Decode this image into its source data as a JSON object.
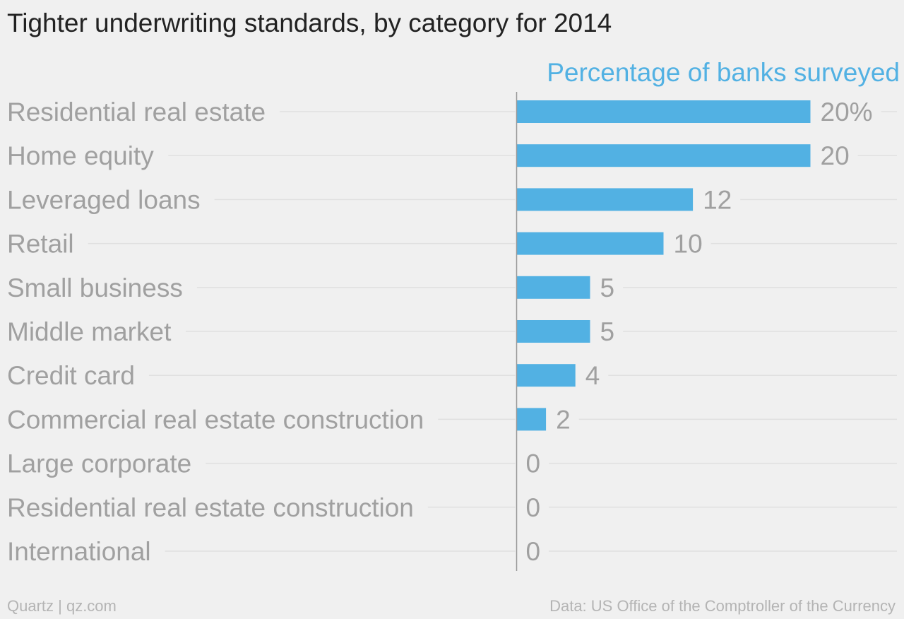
{
  "chart_data": {
    "type": "bar",
    "orientation": "horizontal",
    "title": "Tighter underwriting standards, by category for 2014",
    "series_label": "Percentage of banks surveyed",
    "categories": [
      "Residential real estate",
      "Home equity",
      "Leveraged loans",
      "Retail",
      "Small business",
      "Middle market",
      "Credit card",
      "Commercial real estate construction",
      "Large corporate",
      "Residential real estate construction",
      "International"
    ],
    "values": [
      20,
      20,
      12,
      10,
      5,
      5,
      4,
      2,
      0,
      0,
      0
    ],
    "value_labels": [
      "20%",
      "20",
      "12",
      "10",
      "5",
      "5",
      "4",
      "2",
      "0",
      "0",
      "0"
    ],
    "xlim": [
      0,
      20
    ],
    "grid": false,
    "bar_color": "#52b1e3",
    "label_color": "#a0a0a0",
    "series_label_color": "#52b1e3"
  },
  "footer": {
    "credit": "Quartz | qz.com",
    "source": "Data: US Office of the Comptroller of the Currency"
  }
}
